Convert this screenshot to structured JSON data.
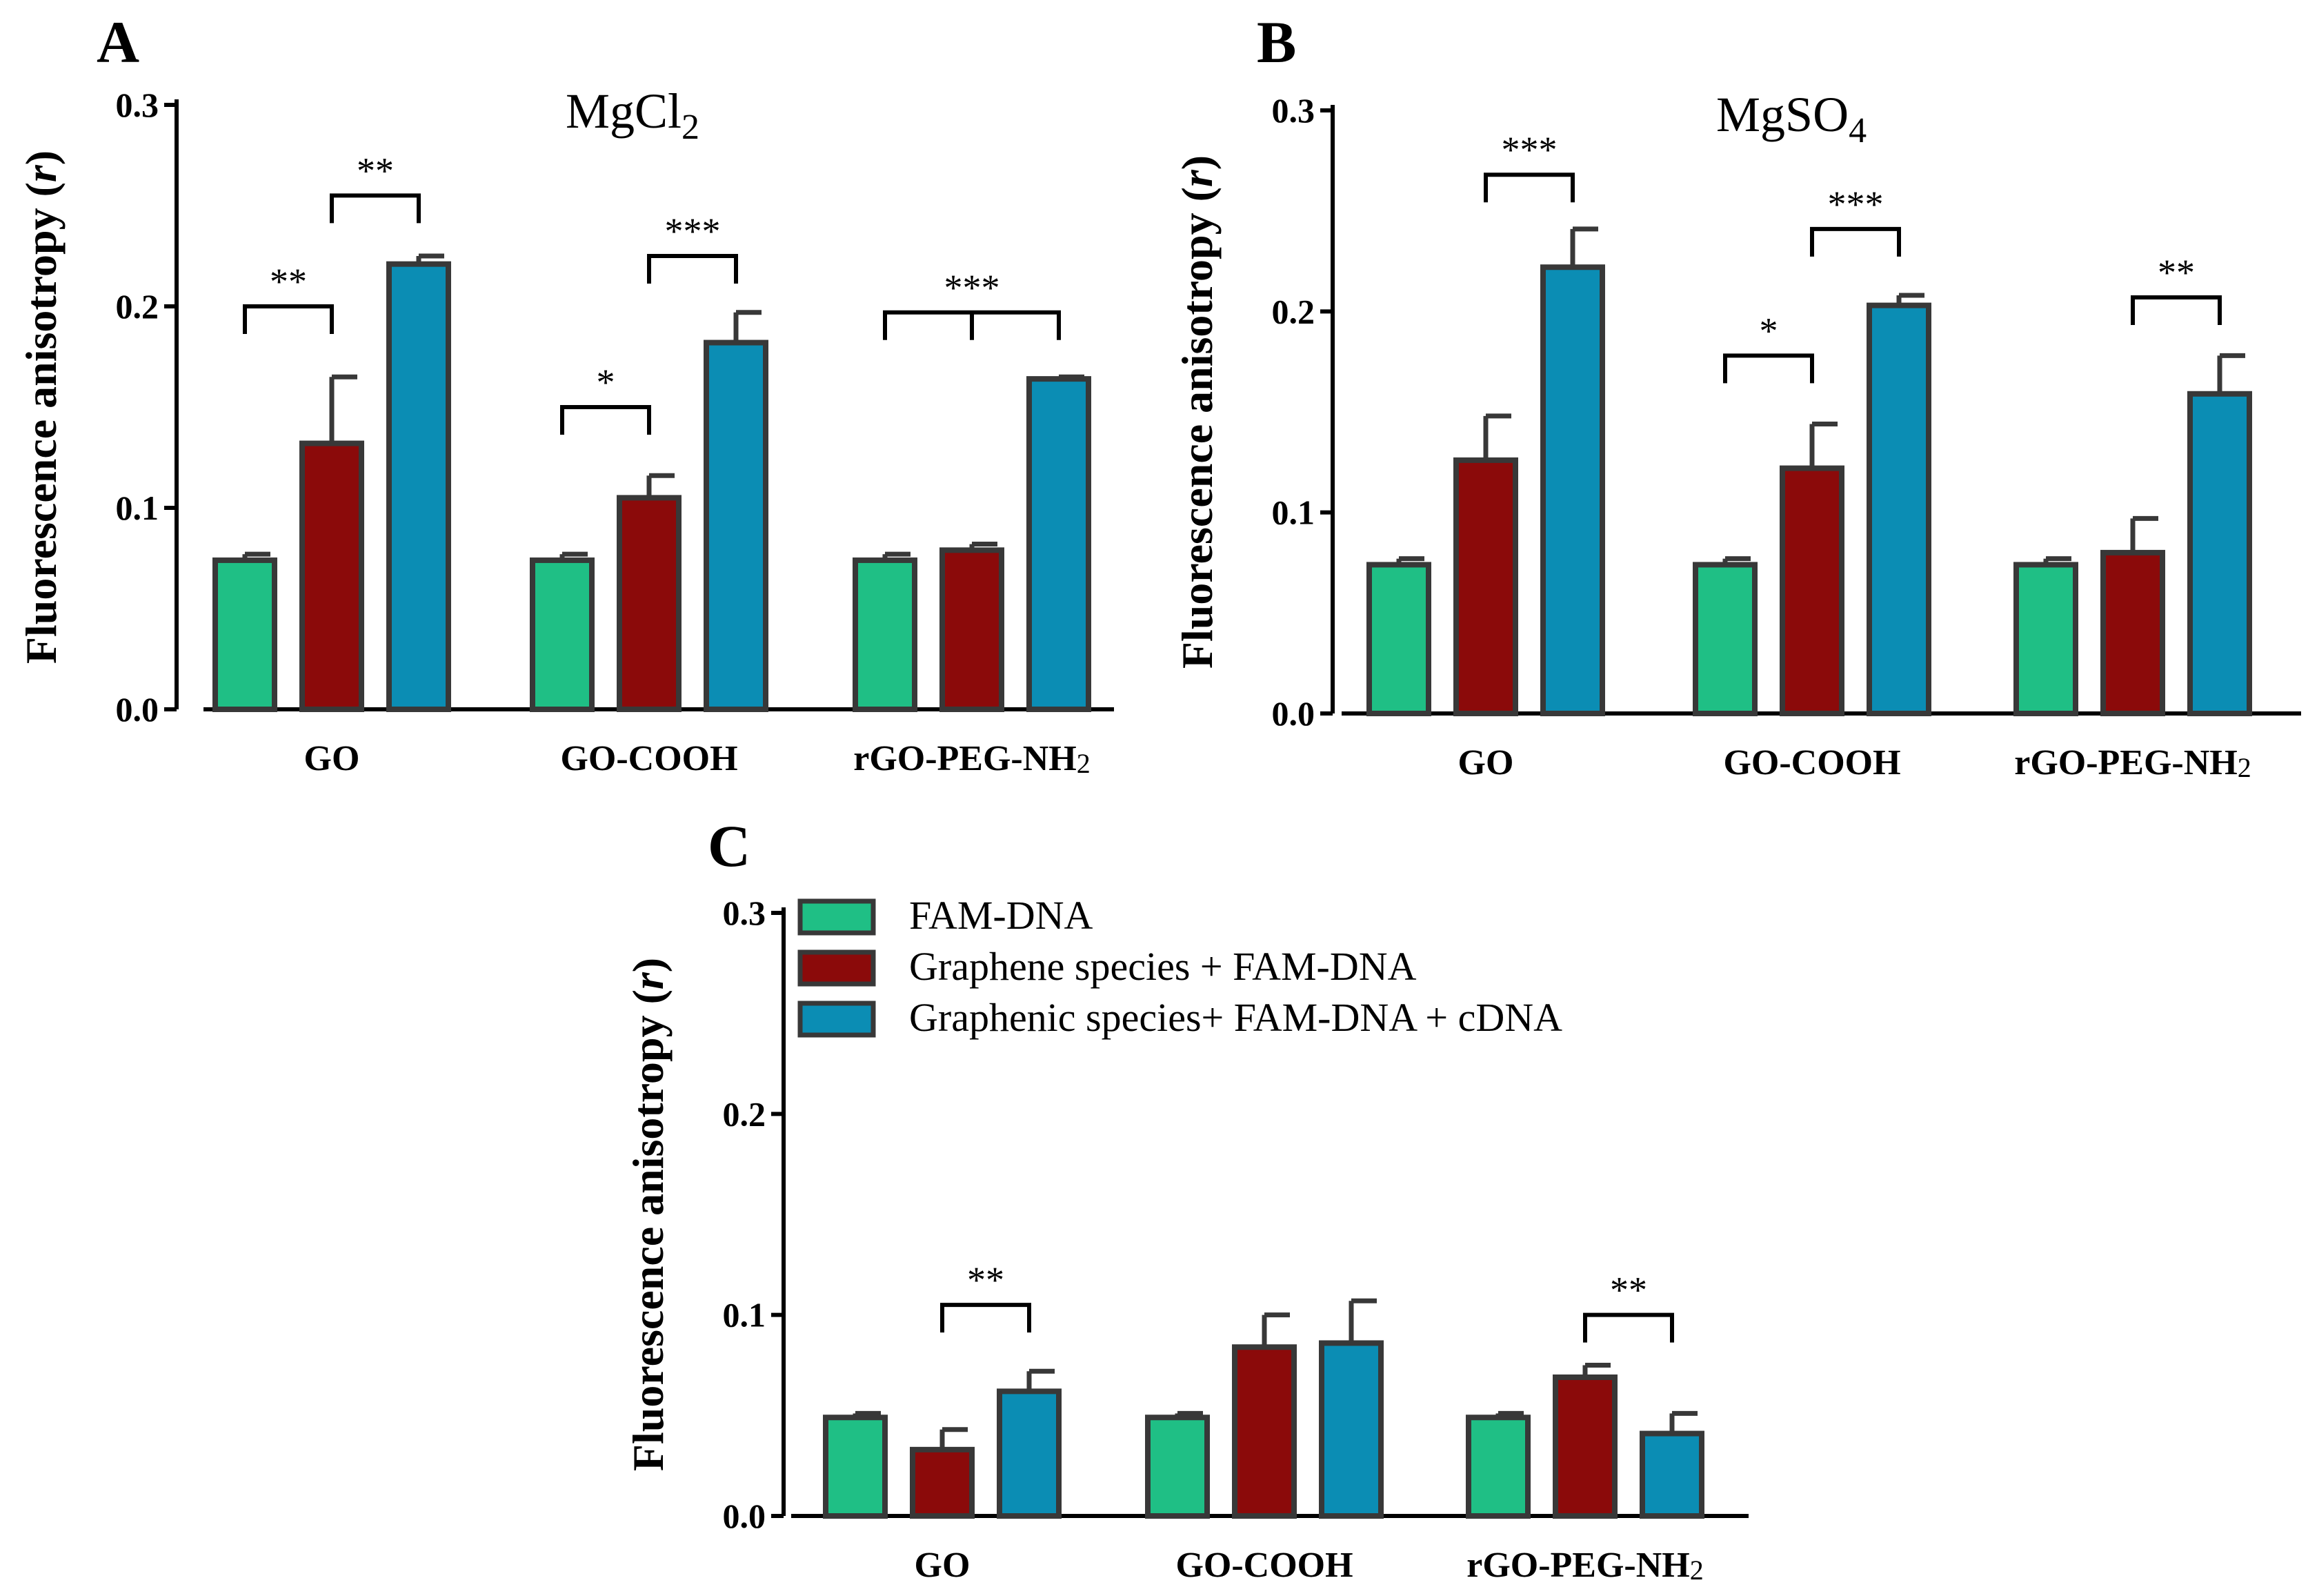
{
  "figure": {
    "legend": {
      "entries": [
        "FAM-DNA",
        "Graphene species + FAM-DNA",
        "Graphenic species+ FAM-DNA + cDNA"
      ],
      "colors": [
        "#1fbf85",
        "#8b0a0a",
        "#0b8db4"
      ]
    }
  },
  "chart_data": [
    {
      "type": "bar",
      "panel": "A",
      "title": "MgCl2",
      "title_main": "MgCl",
      "title_sub": "2",
      "ylabel": "Fluorescence anisotropy (r)",
      "ylabel_prefix": "Fluorescence anisotropy (",
      "ylabel_var": "r",
      "ylabel_suffix": ")",
      "ylim": [
        0,
        0.3
      ],
      "yticks": [
        "0.0",
        "0.1",
        "0.2",
        "0.3"
      ],
      "categories": [
        {
          "main": "GO",
          "sub": ""
        },
        {
          "main": "GO-COOH",
          "sub": ""
        },
        {
          "main": "rGO-PEG-NH",
          "sub": "2"
        }
      ],
      "series": [
        {
          "name": "FAM-DNA",
          "values": [
            0.074,
            0.074,
            0.074
          ],
          "errors": [
            0.003,
            0.003,
            0.003
          ]
        },
        {
          "name": "Graphene species + FAM-DNA",
          "values": [
            0.132,
            0.105,
            0.079
          ],
          "errors": [
            0.033,
            0.011,
            0.003
          ]
        },
        {
          "name": "Graphenic species+ FAM-DNA + cDNA",
          "values": [
            0.221,
            0.182,
            0.164
          ],
          "errors": [
            0.004,
            0.015,
            0.001
          ]
        }
      ],
      "significance": [
        {
          "group": 0,
          "from": 0,
          "to": 1,
          "label": "**",
          "y": 0.2
        },
        {
          "group": 0,
          "from": 1,
          "to": 2,
          "label": "**",
          "y": 0.255
        },
        {
          "group": 1,
          "from": 0,
          "to": 1,
          "label": "*",
          "y": 0.15
        },
        {
          "group": 1,
          "from": 1,
          "to": 2,
          "label": "***",
          "y": 0.225
        },
        {
          "group": 2,
          "from": 0,
          "to": 2,
          "label": "***",
          "y": 0.197,
          "three_way": true
        }
      ]
    },
    {
      "type": "bar",
      "panel": "B",
      "title": "MgSO4",
      "title_main": "MgSO",
      "title_sub": "4",
      "ylabel": "Fluorescence anisotropy (r)",
      "ylabel_prefix": "Fluorescence anisotropy (",
      "ylabel_var": "r",
      "ylabel_suffix": ")",
      "ylim": [
        0,
        0.3
      ],
      "yticks": [
        "0.0",
        "0.1",
        "0.2",
        "0.3"
      ],
      "categories": [
        {
          "main": "GO",
          "sub": ""
        },
        {
          "main": "GO-COOH",
          "sub": ""
        },
        {
          "main": "rGO-PEG-NH",
          "sub": "2"
        }
      ],
      "series": [
        {
          "name": "FAM-DNA",
          "values": [
            0.074,
            0.074,
            0.074
          ],
          "errors": [
            0.003,
            0.003,
            0.003
          ]
        },
        {
          "name": "Graphene species + FAM-DNA",
          "values": [
            0.126,
            0.122,
            0.08
          ],
          "errors": [
            0.022,
            0.022,
            0.017
          ]
        },
        {
          "name": "Graphenic species+ FAM-DNA + cDNA",
          "values": [
            0.222,
            0.203,
            0.159
          ],
          "errors": [
            0.019,
            0.005,
            0.019
          ]
        }
      ],
      "significance": [
        {
          "group": 0,
          "from": 1,
          "to": 2,
          "label": "***",
          "y": 0.268
        },
        {
          "group": 1,
          "from": 0,
          "to": 1,
          "label": "*",
          "y": 0.178
        },
        {
          "group": 1,
          "from": 1,
          "to": 2,
          "label": "***",
          "y": 0.241
        },
        {
          "group": 2,
          "from": 1,
          "to": 2,
          "label": "**",
          "y": 0.207
        }
      ]
    },
    {
      "type": "bar",
      "panel": "C",
      "title": "",
      "ylabel": "Fluorescence anisotropy (r)",
      "ylabel_prefix": "Fluorescence anisotropy (",
      "ylabel_var": "r",
      "ylabel_suffix": ")",
      "ylim": [
        0,
        0.3
      ],
      "yticks": [
        "0.0",
        "0.1",
        "0.2",
        "0.3"
      ],
      "categories": [
        {
          "main": "GO",
          "sub": ""
        },
        {
          "main": "GO-COOH",
          "sub": ""
        },
        {
          "main": "rGO-PEG-NH",
          "sub": "2"
        }
      ],
      "series": [
        {
          "name": "FAM-DNA",
          "values": [
            0.049,
            0.049,
            0.049
          ],
          "errors": [
            0.002,
            0.002,
            0.002
          ]
        },
        {
          "name": "Graphene species + FAM-DNA",
          "values": [
            0.033,
            0.084,
            0.069
          ],
          "errors": [
            0.01,
            0.016,
            0.006
          ]
        },
        {
          "name": "Graphenic species+ FAM-DNA + cDNA",
          "values": [
            0.062,
            0.086,
            0.041
          ],
          "errors": [
            0.01,
            0.021,
            0.01
          ]
        }
      ],
      "significance": [
        {
          "group": 0,
          "from": 1,
          "to": 2,
          "label": "**",
          "y": 0.105
        },
        {
          "group": 2,
          "from": 1,
          "to": 2,
          "label": "**",
          "y": 0.1
        }
      ]
    }
  ]
}
